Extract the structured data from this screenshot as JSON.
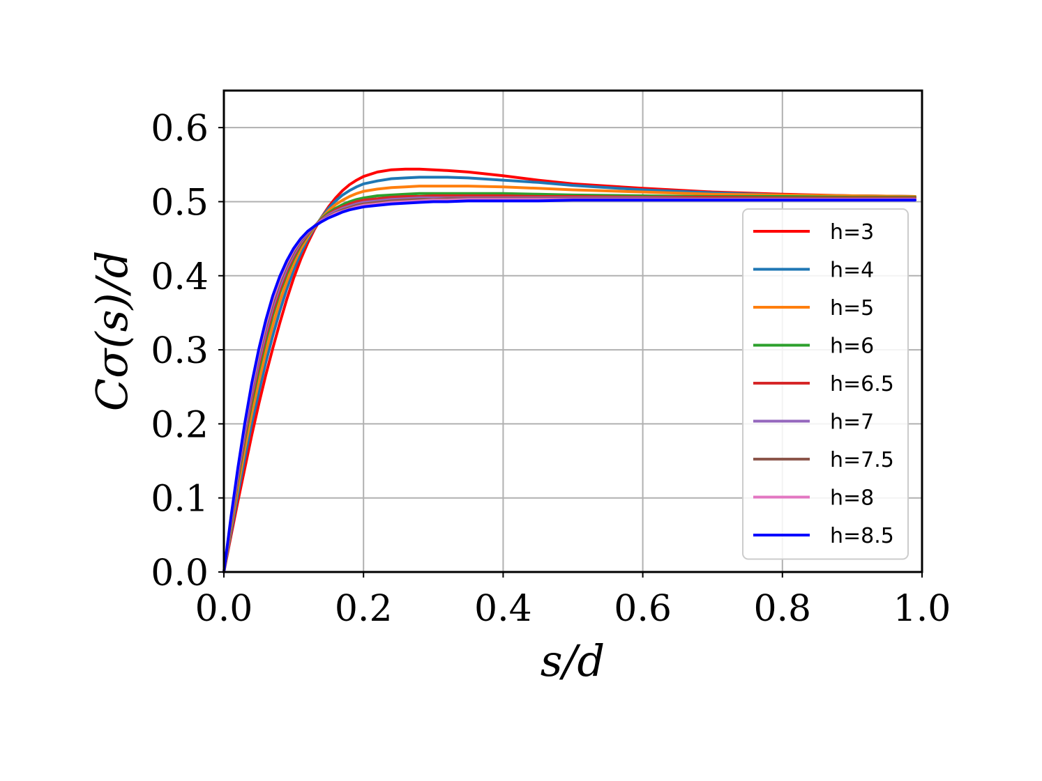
{
  "chart_data": {
    "type": "line",
    "xlabel": "s/d",
    "ylabel": "Cσ(s)/d",
    "xlim": [
      0.0,
      1.0
    ],
    "ylim": [
      0.0,
      0.65
    ],
    "xticks": [
      "0.0",
      "0.2",
      "0.4",
      "0.6",
      "0.8",
      "1.0"
    ],
    "yticks": [
      "0.0",
      "0.1",
      "0.2",
      "0.3",
      "0.4",
      "0.5",
      "0.6"
    ],
    "grid": true,
    "legend_position": "right",
    "x": [
      0.0,
      0.01,
      0.02,
      0.03,
      0.04,
      0.05,
      0.06,
      0.07,
      0.08,
      0.09,
      0.1,
      0.11,
      0.12,
      0.13,
      0.14,
      0.15,
      0.16,
      0.17,
      0.18,
      0.19,
      0.2,
      0.22,
      0.24,
      0.26,
      0.28,
      0.3,
      0.32,
      0.35,
      0.4,
      0.45,
      0.5,
      0.6,
      0.7,
      0.8,
      0.9,
      0.99
    ],
    "series": [
      {
        "name": "h=3",
        "color": "#ff0000",
        "values": [
          0.0,
          0.048,
          0.095,
          0.14,
          0.185,
          0.227,
          0.266,
          0.302,
          0.336,
          0.368,
          0.397,
          0.422,
          0.444,
          0.463,
          0.479,
          0.493,
          0.505,
          0.515,
          0.523,
          0.529,
          0.534,
          0.54,
          0.543,
          0.544,
          0.544,
          0.543,
          0.542,
          0.54,
          0.535,
          0.529,
          0.524,
          0.518,
          0.513,
          0.51,
          0.508,
          0.507
        ]
      },
      {
        "name": "h=4",
        "color": "#1f77b4",
        "values": [
          0.0,
          0.053,
          0.105,
          0.154,
          0.201,
          0.243,
          0.283,
          0.319,
          0.352,
          0.382,
          0.408,
          0.43,
          0.449,
          0.465,
          0.479,
          0.491,
          0.501,
          0.509,
          0.515,
          0.52,
          0.524,
          0.528,
          0.531,
          0.532,
          0.533,
          0.533,
          0.533,
          0.532,
          0.529,
          0.526,
          0.522,
          0.516,
          0.512,
          0.509,
          0.508,
          0.507
        ]
      },
      {
        "name": "h=5",
        "color": "#ff7f0e",
        "values": [
          0.0,
          0.058,
          0.114,
          0.166,
          0.214,
          0.257,
          0.297,
          0.333,
          0.365,
          0.392,
          0.416,
          0.436,
          0.452,
          0.466,
          0.478,
          0.488,
          0.496,
          0.502,
          0.507,
          0.511,
          0.514,
          0.517,
          0.519,
          0.52,
          0.521,
          0.521,
          0.521,
          0.521,
          0.52,
          0.518,
          0.516,
          0.513,
          0.51,
          0.509,
          0.508,
          0.507
        ]
      },
      {
        "name": "h=6",
        "color": "#2ca02c",
        "values": [
          0.0,
          0.063,
          0.123,
          0.178,
          0.228,
          0.272,
          0.312,
          0.347,
          0.377,
          0.402,
          0.423,
          0.441,
          0.455,
          0.467,
          0.477,
          0.485,
          0.491,
          0.496,
          0.5,
          0.503,
          0.505,
          0.508,
          0.509,
          0.51,
          0.511,
          0.511,
          0.511,
          0.511,
          0.511,
          0.51,
          0.509,
          0.508,
          0.507,
          0.507,
          0.506,
          0.506
        ]
      },
      {
        "name": "h=6.5",
        "color": "#d62728",
        "values": [
          0.0,
          0.065,
          0.127,
          0.183,
          0.234,
          0.279,
          0.318,
          0.352,
          0.381,
          0.406,
          0.426,
          0.443,
          0.456,
          0.467,
          0.476,
          0.483,
          0.489,
          0.493,
          0.497,
          0.5,
          0.502,
          0.504,
          0.506,
          0.507,
          0.507,
          0.508,
          0.508,
          0.508,
          0.508,
          0.507,
          0.507,
          0.506,
          0.506,
          0.505,
          0.505,
          0.505
        ]
      },
      {
        "name": "h=7",
        "color": "#9467bd",
        "values": [
          0.0,
          0.067,
          0.13,
          0.188,
          0.24,
          0.285,
          0.324,
          0.358,
          0.386,
          0.41,
          0.429,
          0.445,
          0.457,
          0.467,
          0.475,
          0.482,
          0.487,
          0.491,
          0.494,
          0.497,
          0.499,
          0.501,
          0.503,
          0.504,
          0.505,
          0.505,
          0.505,
          0.505,
          0.505,
          0.505,
          0.505,
          0.505,
          0.504,
          0.504,
          0.504,
          0.504
        ]
      },
      {
        "name": "h=7.5",
        "color": "#8c564b",
        "values": [
          0.0,
          0.069,
          0.134,
          0.193,
          0.245,
          0.291,
          0.33,
          0.363,
          0.391,
          0.414,
          0.432,
          0.447,
          0.458,
          0.467,
          0.474,
          0.48,
          0.485,
          0.489,
          0.492,
          0.495,
          0.497,
          0.499,
          0.501,
          0.502,
          0.503,
          0.503,
          0.504,
          0.504,
          0.504,
          0.504,
          0.504,
          0.504,
          0.504,
          0.504,
          0.504,
          0.504
        ]
      },
      {
        "name": "h=8",
        "color": "#e377c2",
        "values": [
          0.0,
          0.071,
          0.137,
          0.197,
          0.25,
          0.296,
          0.335,
          0.368,
          0.395,
          0.417,
          0.435,
          0.449,
          0.459,
          0.467,
          0.474,
          0.479,
          0.484,
          0.487,
          0.49,
          0.493,
          0.495,
          0.497,
          0.499,
          0.5,
          0.501,
          0.502,
          0.502,
          0.503,
          0.503,
          0.503,
          0.503,
          0.503,
          0.503,
          0.503,
          0.503,
          0.503
        ]
      },
      {
        "name": "h=8.5",
        "color": "#0000ff",
        "values": [
          0.0,
          0.073,
          0.14,
          0.201,
          0.255,
          0.301,
          0.34,
          0.373,
          0.399,
          0.42,
          0.437,
          0.45,
          0.46,
          0.467,
          0.473,
          0.478,
          0.482,
          0.486,
          0.489,
          0.491,
          0.493,
          0.495,
          0.497,
          0.498,
          0.499,
          0.5,
          0.5,
          0.501,
          0.501,
          0.501,
          0.502,
          0.502,
          0.502,
          0.502,
          0.502,
          0.502
        ]
      }
    ]
  }
}
